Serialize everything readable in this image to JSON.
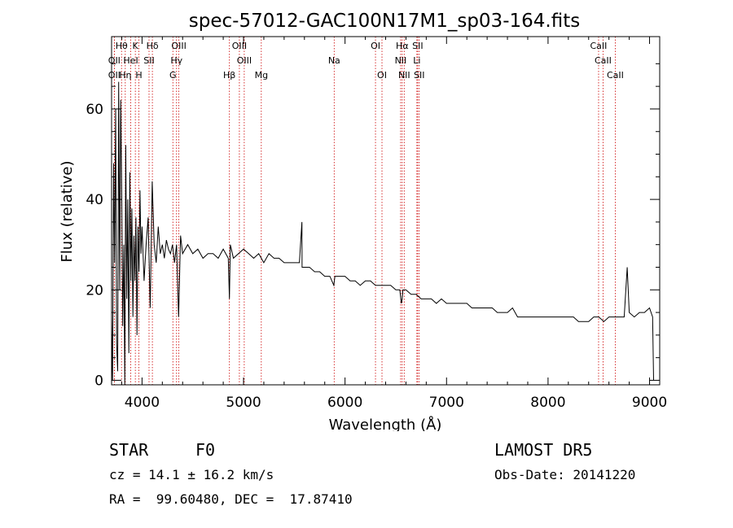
{
  "chart_data": {
    "type": "line",
    "title": "spec-57012-GAC100N17M1_sp03-164.fits",
    "xlabel": "Wavelength (Å)",
    "ylabel": "Flux (relative)",
    "xlim": [
      3700,
      9100
    ],
    "ylim": [
      -1,
      76
    ],
    "xticks": [
      4000,
      5000,
      6000,
      7000,
      8000,
      9000
    ],
    "yticks": [
      0,
      20,
      40,
      60
    ],
    "line_color": "#000000",
    "marker_color": "#cc0000",
    "series": [
      {
        "x": [
          3700,
          3710,
          3720,
          3730,
          3740,
          3750,
          3760,
          3770,
          3780,
          3790,
          3800,
          3810,
          3820,
          3830,
          3840,
          3850,
          3860,
          3870,
          3880,
          3890,
          3900,
          3910,
          3920,
          3930,
          3940,
          3950,
          3960,
          3970,
          3980,
          3990,
          4000,
          4020,
          4040,
          4060,
          4080,
          4100,
          4120,
          4140,
          4160,
          4180,
          4200,
          4220,
          4240,
          4260,
          4280,
          4300,
          4320,
          4340,
          4360,
          4380,
          4400,
          4450,
          4500,
          4550,
          4600,
          4650,
          4700,
          4750,
          4800,
          4850,
          4861,
          4870,
          4900,
          4950,
          5000,
          5050,
          5100,
          5150,
          5200,
          5250,
          5300,
          5350,
          5400,
          5450,
          5500,
          5550,
          5575,
          5577,
          5580,
          5600,
          5650,
          5700,
          5750,
          5800,
          5850,
          5890,
          5900,
          5950,
          6000,
          6050,
          6100,
          6150,
          6200,
          6250,
          6300,
          6350,
          6400,
          6450,
          6500,
          6540,
          6555,
          6563,
          6570,
          6580,
          6600,
          6650,
          6700,
          6750,
          6800,
          6850,
          6900,
          6950,
          7000,
          7050,
          7100,
          7150,
          7200,
          7250,
          7300,
          7350,
          7400,
          7450,
          7500,
          7550,
          7600,
          7650,
          7700,
          7750,
          7800,
          7850,
          7900,
          7950,
          8000,
          8050,
          8100,
          8150,
          8200,
          8250,
          8300,
          8350,
          8400,
          8450,
          8500,
          8550,
          8600,
          8650,
          8700,
          8750,
          8780,
          8800,
          8850,
          8900,
          8950,
          9000,
          9030,
          9040
        ],
        "y": [
          14,
          0,
          48,
          26,
          60,
          8,
          2,
          66,
          20,
          62,
          40,
          12,
          30,
          -1,
          52,
          18,
          40,
          6,
          46,
          22,
          38,
          14,
          32,
          22,
          36,
          10,
          34,
          24,
          42,
          28,
          34,
          22,
          30,
          36,
          16,
          44,
          30,
          26,
          34,
          28,
          30,
          27,
          31,
          29,
          28,
          30,
          26,
          30,
          14,
          32,
          28,
          30,
          28,
          29,
          27,
          28,
          28,
          27,
          29,
          27,
          18,
          30,
          27,
          28,
          29,
          28,
          27,
          28,
          26,
          28,
          27,
          27,
          26,
          26,
          26,
          26,
          35,
          25,
          25,
          25,
          25,
          24,
          24,
          23,
          23,
          21,
          23,
          23,
          23,
          22,
          22,
          21,
          22,
          22,
          21,
          21,
          21,
          21,
          20,
          20,
          17,
          18,
          20,
          20,
          20,
          19,
          19,
          18,
          18,
          18,
          17,
          18,
          17,
          17,
          17,
          17,
          17,
          16,
          16,
          16,
          16,
          16,
          15,
          15,
          15,
          16,
          14,
          14,
          14,
          14,
          14,
          14,
          14,
          14,
          14,
          14,
          14,
          14,
          13,
          13,
          13,
          14,
          14,
          13,
          14,
          14,
          14,
          14,
          25,
          15,
          14,
          15,
          15,
          16,
          14,
          0
        ]
      }
    ],
    "lines": [
      {
        "label": "OII",
        "wl": 3727,
        "row": 2
      },
      {
        "label": "OII",
        "wl": 3727,
        "row": 3
      },
      {
        "label": "Hθ",
        "wl": 3798,
        "row": 1
      },
      {
        "label": "Hη",
        "wl": 3835,
        "row": 3
      },
      {
        "label": "HeI",
        "wl": 3889,
        "row": 2
      },
      {
        "label": "K",
        "wl": 3934,
        "row": 1
      },
      {
        "label": "SII",
        "wl": 4069,
        "row": 2
      },
      {
        "label": "H",
        "wl": 3969,
        "row": 3
      },
      {
        "label": "Hδ",
        "wl": 4102,
        "row": 1
      },
      {
        "label": "OIII",
        "wl": 4363,
        "row": 1
      },
      {
        "label": "Hγ",
        "wl": 4340,
        "row": 2
      },
      {
        "label": "G",
        "wl": 4304,
        "row": 3
      },
      {
        "label": "Hβ",
        "wl": 4861,
        "row": 3
      },
      {
        "label": "OIII",
        "wl": 4959,
        "row": 1
      },
      {
        "label": "OIII",
        "wl": 5007,
        "row": 2
      },
      {
        "label": "Mg",
        "wl": 5175,
        "row": 3
      },
      {
        "label": "Na",
        "wl": 5893,
        "row": 2
      },
      {
        "label": "OI",
        "wl": 6300,
        "row": 1
      },
      {
        "label": "OI",
        "wl": 6364,
        "row": 3
      },
      {
        "label": "Hα",
        "wl": 6563,
        "row": 1
      },
      {
        "label": "NII",
        "wl": 6548,
        "row": 2
      },
      {
        "label": "NII",
        "wl": 6583,
        "row": 3
      },
      {
        "label": "SII",
        "wl": 6716,
        "row": 1
      },
      {
        "label": "Li",
        "wl": 6708,
        "row": 2
      },
      {
        "label": "SII",
        "wl": 6731,
        "row": 3
      },
      {
        "label": "CaII",
        "wl": 8498,
        "row": 1
      },
      {
        "label": "CaII",
        "wl": 8542,
        "row": 2
      },
      {
        "label": "CaII",
        "wl": 8662,
        "row": 3
      }
    ]
  },
  "info": {
    "class": "STAR",
    "subclass": "F0",
    "survey": "LAMOST DR5",
    "cz": "cz = 14.1 ± 16.2 km/s",
    "obsdate": "Obs-Date: 20141220",
    "radec": "RA =  99.60480, DEC =  17.87410"
  }
}
